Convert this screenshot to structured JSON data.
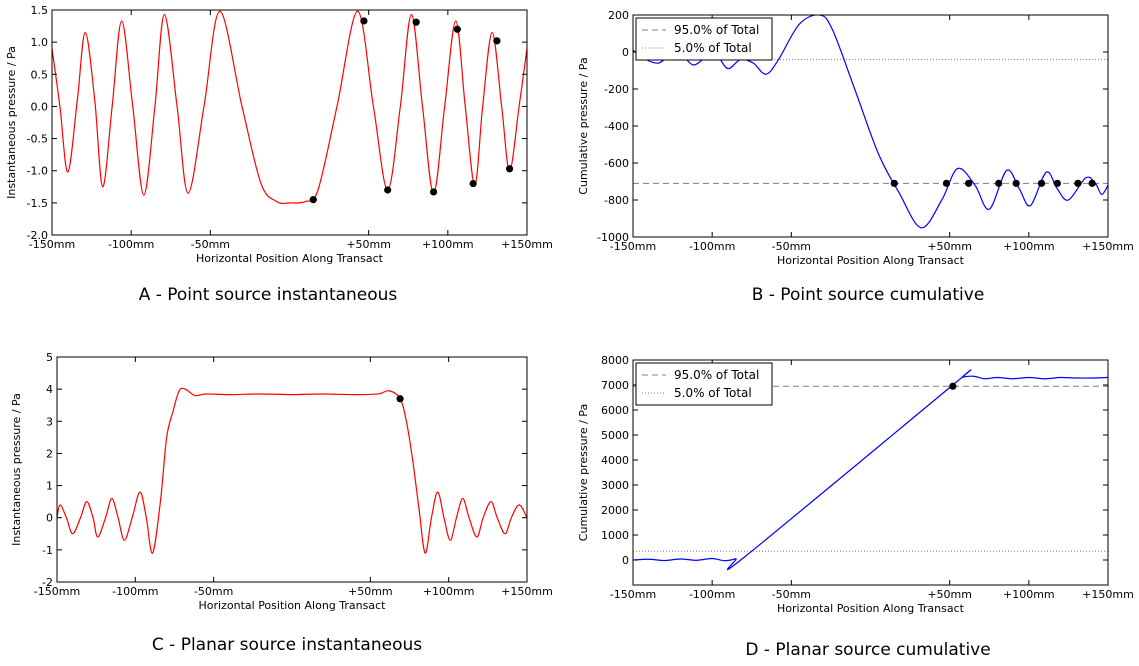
{
  "chart_data": [
    {
      "type": "line",
      "caption": "A - Point source instantaneous",
      "x_label": "Horizontal Position Along Transact",
      "y_label": "Instantaneous pressure / Pa",
      "x": [
        -150,
        -145,
        -140,
        -134,
        -129,
        -123,
        -118,
        -112,
        -106,
        -99,
        -92,
        -85,
        -79,
        -71,
        -64,
        -54,
        -44,
        -30,
        -18,
        -8,
        0,
        10,
        18,
        30,
        43,
        53,
        62,
        70,
        77,
        84,
        91,
        98,
        105,
        111,
        117,
        122,
        128,
        134,
        139,
        145,
        150
      ],
      "series": [
        {
          "color": "#ff0000",
          "values": [
            0.9,
            0.0,
            -1.02,
            0.1,
            1.15,
            0.1,
            -1.25,
            0.0,
            1.33,
            0.0,
            -1.38,
            0.0,
            1.43,
            0.0,
            -1.35,
            0.0,
            1.48,
            0.0,
            -1.2,
            -1.48,
            -1.5,
            -1.48,
            -1.3,
            0.0,
            1.48,
            0.0,
            -1.3,
            0.0,
            1.43,
            0.0,
            -1.35,
            0.0,
            1.33,
            0.0,
            -1.22,
            0.0,
            1.15,
            0.0,
            -1.0,
            0.0,
            0.9
          ]
        }
      ],
      "points": {
        "color": "#000000",
        "x": [
          15,
          47,
          62,
          80,
          91,
          106,
          116,
          131,
          139
        ],
        "y": [
          -1.45,
          1.33,
          -1.3,
          1.31,
          -1.33,
          1.2,
          -1.2,
          1.02,
          -0.97
        ]
      },
      "xlim": [
        -150,
        150
      ],
      "ylim": [
        -2,
        1.5
      ],
      "xticks": [
        {
          "value": -150,
          "label": "-150mm"
        },
        {
          "value": -100,
          "label": "-100mm"
        },
        {
          "value": -50,
          "label": "-50mm"
        },
        {
          "value": 50,
          "label": "+50mm"
        },
        {
          "value": 100,
          "label": "+100mm"
        },
        {
          "value": 150,
          "label": "+150mm"
        }
      ],
      "yticks": [
        -1.5,
        {
          "value": -2,
          "label": "-2.0"
        },
        {
          "value": -1,
          "label": "-1.0"
        },
        -0.5,
        {
          "value": 0,
          "label": "0.0"
        },
        0.5,
        {
          "value": 1,
          "label": "1.0"
        },
        1.5
      ]
    },
    {
      "type": "line",
      "caption": "B - Point source cumulative",
      "x_label": "Horizontal Position Along Transact",
      "y_label": "Cumulative pressure / Pa",
      "x": [
        -150,
        -142,
        -134,
        -127,
        -120,
        -112,
        -104,
        -97,
        -90,
        -82,
        -74,
        -66,
        -58,
        -45,
        -32,
        -24,
        -10,
        5,
        18,
        32,
        45,
        55,
        66,
        75,
        86,
        94,
        101,
        111,
        118,
        125,
        136,
        142,
        146,
        150
      ],
      "series": [
        {
          "color": "#0000ff",
          "values": [
            10,
            -40,
            -60,
            -20,
            -10,
            -70,
            -30,
            -20,
            -90,
            -40,
            -60,
            -120,
            -40,
            150,
            200,
            120,
            -200,
            -550,
            -760,
            -950,
            -800,
            -630,
            -720,
            -850,
            -640,
            -740,
            -830,
            -650,
            -740,
            -800,
            -680,
            -710,
            -770,
            -720
          ]
        }
      ],
      "points": {
        "color": "#000000",
        "x": [
          15,
          48,
          62,
          81,
          92,
          108,
          118,
          131,
          140
        ],
        "y": [
          -710,
          -710,
          -710,
          -710,
          -710,
          -710,
          -710,
          -710,
          -710
        ]
      },
      "reference_lines": [
        {
          "name": "95.0% of Total",
          "value": -710,
          "style": "dashed",
          "color": "#808080"
        },
        {
          "name": "5.0% of Total",
          "value": -40,
          "style": "dotted",
          "color": "#808080"
        }
      ],
      "legend": "upper left",
      "xlim": [
        -150,
        150
      ],
      "ylim": [
        -1000,
        200
      ],
      "xticks": [
        {
          "value": -150,
          "label": "-150mm"
        },
        {
          "value": -100,
          "label": "-100mm"
        },
        {
          "value": -50,
          "label": "-50mm"
        },
        {
          "value": 50,
          "label": "+50mm"
        },
        {
          "value": 100,
          "label": "+100mm"
        },
        {
          "value": 150,
          "label": "+150mm"
        }
      ],
      "yticks": [
        -1000,
        -800,
        -600,
        -400,
        -200,
        0,
        200
      ]
    },
    {
      "type": "line",
      "caption": "C - Planar source instantaneous",
      "x_label": "Horizontal Position Along Transact",
      "y_label": "Instantaneous pressure / Pa",
      "x": [
        -150,
        -148,
        -144,
        -140,
        -135,
        -131,
        -127,
        -124,
        -119,
        -115,
        -111,
        -107,
        -102,
        -97,
        -93,
        -89,
        -84,
        -80,
        -76,
        -72,
        -68,
        -62,
        -55,
        -40,
        -20,
        0,
        20,
        40,
        55,
        62,
        69,
        73,
        77,
        81,
        85,
        89,
        93,
        97,
        101,
        105,
        109,
        113,
        118,
        122,
        127,
        131,
        136,
        140,
        145,
        150
      ],
      "series": [
        {
          "color": "#ff0000",
          "values": [
            0.0,
            0.4,
            0.0,
            -0.5,
            0.0,
            0.5,
            0.0,
            -0.6,
            0.0,
            0.6,
            0.0,
            -0.7,
            0.0,
            0.8,
            0.0,
            -1.1,
            0.5,
            2.5,
            3.3,
            3.95,
            4.0,
            3.8,
            3.85,
            3.83,
            3.85,
            3.83,
            3.85,
            3.83,
            3.85,
            3.95,
            3.7,
            3.0,
            1.8,
            0.3,
            -1.1,
            0.0,
            0.8,
            0.0,
            -0.7,
            0.0,
            0.6,
            0.0,
            -0.6,
            0.0,
            0.5,
            0.0,
            -0.5,
            0.0,
            0.4,
            0.0
          ]
        }
      ],
      "points": {
        "color": "#000000",
        "x": [
          69
        ],
        "y": [
          3.7
        ]
      },
      "xlim": [
        -150,
        150
      ],
      "ylim": [
        -2,
        5
      ],
      "xticks": [
        {
          "value": -150,
          "label": "-150mm"
        },
        {
          "value": -100,
          "label": "-100mm"
        },
        {
          "value": -50,
          "label": "-50mm"
        },
        {
          "value": 50,
          "label": "+50mm"
        },
        {
          "value": 100,
          "label": "+100mm"
        },
        {
          "value": 150,
          "label": "+150mm"
        }
      ],
      "yticks": [
        -2,
        -1,
        0,
        1,
        2,
        3,
        4,
        5
      ]
    },
    {
      "type": "line",
      "caption": "D - Planar source cumulative",
      "x_label": "Horizontal Position Along Transact",
      "y_label": "Cumulative pressure / Pa",
      "x": [
        -150,
        -140,
        -130,
        -120,
        -110,
        -100,
        -92,
        -85,
        -79,
        52,
        58,
        65,
        72,
        80,
        90,
        100,
        110,
        120,
        130,
        140,
        150
      ],
      "series": [
        {
          "color": "#0000ff",
          "values": [
            0,
            30,
            -20,
            40,
            -10,
            60,
            -30,
            50,
            150,
            7000,
            7300,
            7350,
            7250,
            7300,
            7250,
            7300,
            7250,
            7300,
            7280,
            7280,
            7300
          ]
        }
      ],
      "points": {
        "color": "#000000",
        "x": [
          52
        ],
        "y": [
          6950
        ]
      },
      "reference_lines": [
        {
          "name": "95.0% of Total",
          "value": 6950,
          "style": "dashed",
          "color": "#808080"
        },
        {
          "name": "5.0% of Total",
          "value": 350,
          "style": "dotted",
          "color": "#808080"
        }
      ],
      "legend": "upper left",
      "xlim": [
        -150,
        150
      ],
      "ylim": [
        -1000,
        8000
      ],
      "xticks": [
        {
          "value": -150,
          "label": "-150mm"
        },
        {
          "value": -100,
          "label": "-100mm"
        },
        {
          "value": -50,
          "label": "-50mm"
        },
        {
          "value": 50,
          "label": "+50mm"
        },
        {
          "value": 100,
          "label": "+100mm"
        },
        {
          "value": 150,
          "label": "+150mm"
        }
      ],
      "yticks": [
        0,
        1000,
        2000,
        3000,
        4000,
        5000,
        6000,
        7000,
        8000
      ]
    }
  ]
}
